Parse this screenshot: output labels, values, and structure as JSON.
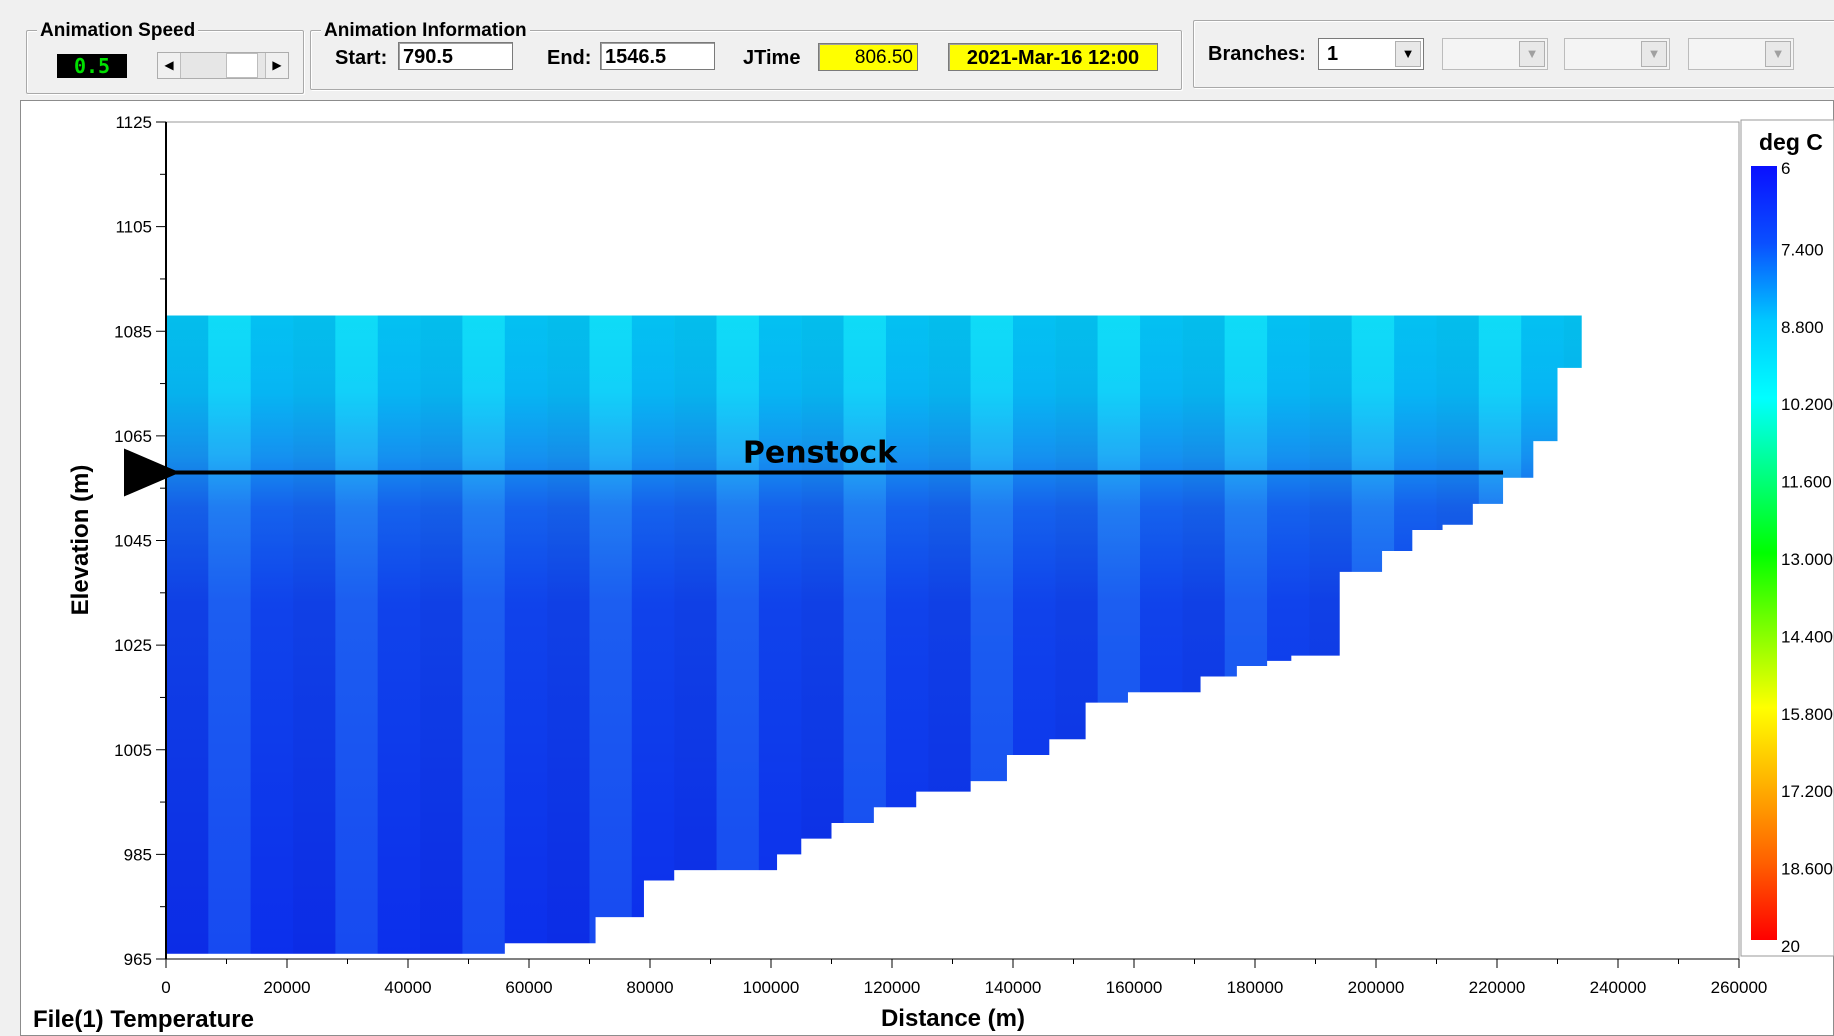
{
  "animation_speed": {
    "label": "Animation Speed",
    "value": "0.5",
    "left_arrow": "◀",
    "right_arrow": "▶"
  },
  "animation_info": {
    "label": "Animation Information",
    "start_label": "Start:",
    "start_value": "790.5",
    "end_label": "End:",
    "end_value": "1546.5",
    "jtime_label": "JTime",
    "jtime_value": "806.50",
    "date_value": "2021-Mar-16 12:00"
  },
  "branches": {
    "label": "Branches:",
    "selected": "1",
    "dropdown_arrow": "▼"
  },
  "colors": {
    "highlight": "#ffff00",
    "speed_text": "#00e000",
    "water_deep": "#1136ee",
    "water_surface": "#04e4f4"
  },
  "chart_data": {
    "type": "heatmap",
    "xlabel": "Distance (m)",
    "ylabel": "Elevation (m)",
    "xlim": [
      0,
      260000
    ],
    "ylim": [
      965,
      1125
    ],
    "x_ticks": [
      0,
      20000,
      40000,
      60000,
      80000,
      100000,
      120000,
      140000,
      160000,
      180000,
      200000,
      220000,
      240000,
      260000
    ],
    "y_ticks": [
      965,
      985,
      1005,
      1025,
      1045,
      1065,
      1085,
      1105,
      1125
    ],
    "water_surface_elevation": 1088,
    "bottom_profile": [
      {
        "distance": 0,
        "elevation": 966
      },
      {
        "distance": 56000,
        "elevation": 966
      },
      {
        "distance": 56000,
        "elevation": 968
      },
      {
        "distance": 71000,
        "elevation": 968
      },
      {
        "distance": 71000,
        "elevation": 973
      },
      {
        "distance": 79000,
        "elevation": 973
      },
      {
        "distance": 79000,
        "elevation": 980
      },
      {
        "distance": 84000,
        "elevation": 980
      },
      {
        "distance": 84000,
        "elevation": 982
      },
      {
        "distance": 101000,
        "elevation": 982
      },
      {
        "distance": 101000,
        "elevation": 985
      },
      {
        "distance": 105000,
        "elevation": 985
      },
      {
        "distance": 105000,
        "elevation": 988
      },
      {
        "distance": 110000,
        "elevation": 988
      },
      {
        "distance": 110000,
        "elevation": 991
      },
      {
        "distance": 117000,
        "elevation": 991
      },
      {
        "distance": 117000,
        "elevation": 994
      },
      {
        "distance": 124000,
        "elevation": 994
      },
      {
        "distance": 124000,
        "elevation": 997
      },
      {
        "distance": 133000,
        "elevation": 997
      },
      {
        "distance": 133000,
        "elevation": 999
      },
      {
        "distance": 139000,
        "elevation": 999
      },
      {
        "distance": 139000,
        "elevation": 1004
      },
      {
        "distance": 146000,
        "elevation": 1004
      },
      {
        "distance": 146000,
        "elevation": 1007
      },
      {
        "distance": 152000,
        "elevation": 1007
      },
      {
        "distance": 152000,
        "elevation": 1014
      },
      {
        "distance": 159000,
        "elevation": 1014
      },
      {
        "distance": 159000,
        "elevation": 1016
      },
      {
        "distance": 171000,
        "elevation": 1016
      },
      {
        "distance": 171000,
        "elevation": 1019
      },
      {
        "distance": 177000,
        "elevation": 1019
      },
      {
        "distance": 177000,
        "elevation": 1021
      },
      {
        "distance": 182000,
        "elevation": 1021
      },
      {
        "distance": 182000,
        "elevation": 1022
      },
      {
        "distance": 186000,
        "elevation": 1022
      },
      {
        "distance": 186000,
        "elevation": 1023
      },
      {
        "distance": 194000,
        "elevation": 1023
      },
      {
        "distance": 194000,
        "elevation": 1039
      },
      {
        "distance": 201000,
        "elevation": 1039
      },
      {
        "distance": 201000,
        "elevation": 1043
      },
      {
        "distance": 206000,
        "elevation": 1043
      },
      {
        "distance": 206000,
        "elevation": 1047
      },
      {
        "distance": 211000,
        "elevation": 1047
      },
      {
        "distance": 211000,
        "elevation": 1048
      },
      {
        "distance": 216000,
        "elevation": 1048
      },
      {
        "distance": 216000,
        "elevation": 1052
      },
      {
        "distance": 221000,
        "elevation": 1052
      },
      {
        "distance": 221000,
        "elevation": 1057
      },
      {
        "distance": 226000,
        "elevation": 1057
      },
      {
        "distance": 226000,
        "elevation": 1064
      },
      {
        "distance": 230000,
        "elevation": 1064
      },
      {
        "distance": 230000,
        "elevation": 1069
      },
      {
        "distance": 230000,
        "elevation": 1078
      },
      {
        "distance": 234000,
        "elevation": 1078
      },
      {
        "distance": 234000,
        "elevation": 1083
      },
      {
        "distance": 234000,
        "elevation": 1088
      }
    ],
    "annotation": {
      "text": "Penstock",
      "elevation": 1058,
      "x_start": 221000,
      "x_end": 0
    },
    "colorbar": {
      "unit": "deg C",
      "min": 6,
      "max": 20,
      "labels": [
        "6",
        "7.400",
        "8.800",
        "10.200",
        "11.600",
        "13.000",
        "14.400",
        "15.800",
        "17.200",
        "18.600",
        "20"
      ],
      "colors": [
        "#0a10ff",
        "#0a50ff",
        "#00c8ff",
        "#00ffff",
        "#00ff80",
        "#00ff00",
        "#80ff00",
        "#ffff00",
        "#ffb000",
        "#ff6000",
        "#ff0000"
      ]
    }
  },
  "footer": {
    "file_label": "File(1) Temperature"
  }
}
